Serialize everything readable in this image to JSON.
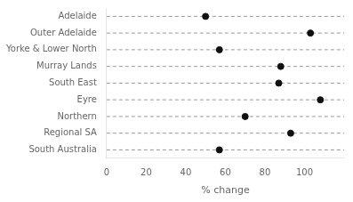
{
  "chart_data": {
    "type": "dot",
    "categories": [
      "Adelaide",
      "Outer Adelaide",
      "Yorke & Lower North",
      "Murray Lands",
      "South East",
      "Eyre",
      "Northern",
      "Regional SA",
      "South Australia"
    ],
    "values": [
      50,
      103,
      57,
      88,
      87,
      108,
      70,
      93,
      57
    ],
    "orientation": "horizontal",
    "xlim": [
      0,
      120
    ],
    "xticks": [
      0,
      20,
      40,
      60,
      80,
      100
    ],
    "xlabel": "% change",
    "color": "#111111",
    "marker": "circle",
    "line_style": "dashed",
    "grid": false
  }
}
